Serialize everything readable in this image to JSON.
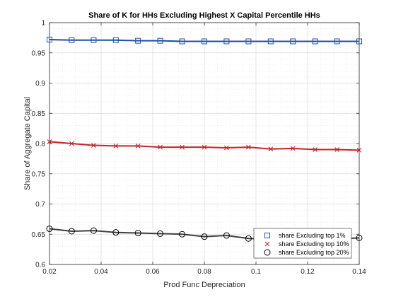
{
  "chart_data": {
    "type": "line",
    "title": "Share of K for HHs Excluding Highest X Capital Percentile HHs",
    "xlabel": "Prod Func Depreciation",
    "ylabel": "Share of Aggregate Capital",
    "xlim": [
      0.02,
      0.14
    ],
    "ylim": [
      0.6,
      1.0
    ],
    "xticks": [
      0.02,
      0.04,
      0.06,
      0.08,
      0.1,
      0.12,
      0.14
    ],
    "xtick_labels": [
      "0.02",
      "0.04",
      "0.06",
      "0.08",
      "0.1",
      "0.12",
      "0.14"
    ],
    "yticks": [
      0.6,
      0.65,
      0.7,
      0.75,
      0.8,
      0.85,
      0.9,
      0.95,
      1.0
    ],
    "ytick_labels": [
      "0.6",
      "0.65",
      "0.7",
      "0.75",
      "0.8",
      "0.85",
      "0.9",
      "0.95",
      "1"
    ],
    "grid": true,
    "minor_grid": true,
    "legend_position": "bottom-right",
    "x": [
      0.02,
      0.0286,
      0.0371,
      0.0457,
      0.0543,
      0.0629,
      0.0714,
      0.08,
      0.0886,
      0.0971,
      0.1057,
      0.1143,
      0.1229,
      0.1314,
      0.14
    ],
    "series": [
      {
        "name": "share Excluding top 1%",
        "color": "#1f4fa8",
        "marker": "square",
        "values": [
          0.972,
          0.971,
          0.971,
          0.971,
          0.97,
          0.97,
          0.969,
          0.969,
          0.969,
          0.969,
          0.969,
          0.969,
          0.969,
          0.969,
          0.969
        ]
      },
      {
        "name": "share Excluding top 10%",
        "color": "#c8232c",
        "marker": "x",
        "values": [
          0.803,
          0.8,
          0.797,
          0.796,
          0.796,
          0.794,
          0.794,
          0.794,
          0.793,
          0.794,
          0.791,
          0.792,
          0.79,
          0.79,
          0.789
        ]
      },
      {
        "name": "share Excluding top 20%",
        "color": "#404040",
        "marker": "circle",
        "values": [
          0.659,
          0.655,
          0.656,
          0.653,
          0.652,
          0.651,
          0.65,
          0.646,
          0.648,
          0.643,
          0.642,
          0.643,
          0.641,
          0.642,
          0.644
        ]
      }
    ]
  }
}
